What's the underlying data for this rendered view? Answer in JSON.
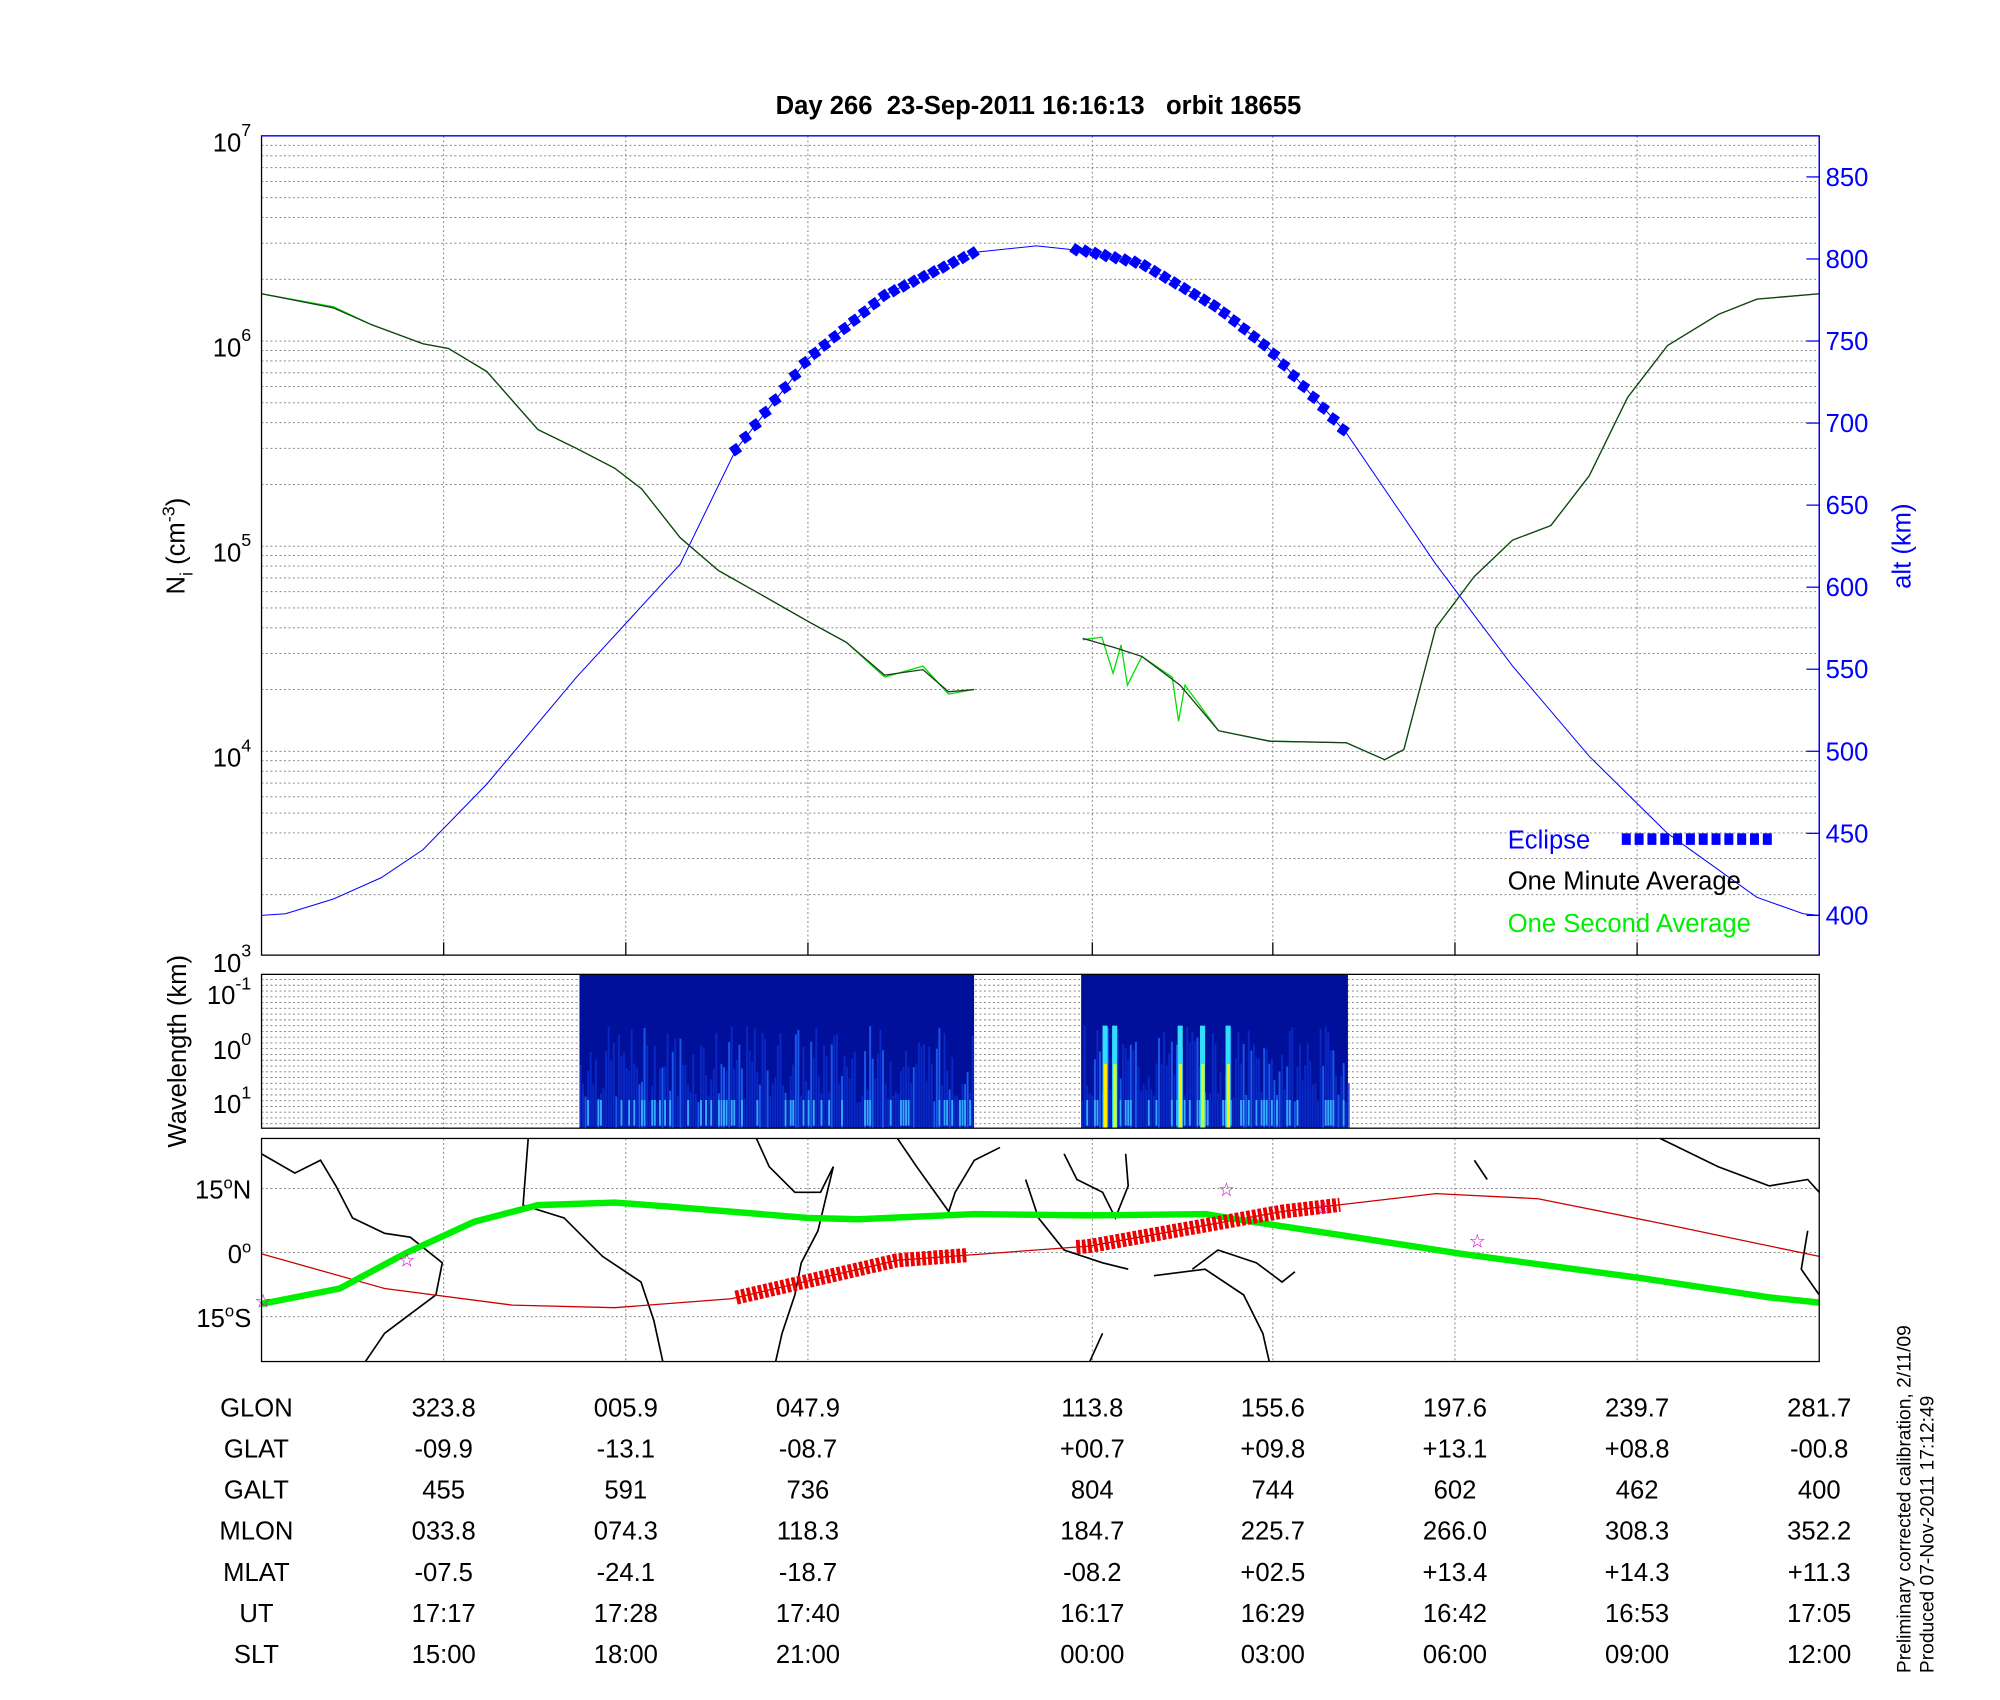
{
  "chart_data": [
    {
      "type": "line",
      "title": "Day 266  23-Sep-2011 16:16:13   orbit 18655",
      "xlabel": "",
      "x_units": "orbit minutes from plot start",
      "xlim": [
        0,
        97.5
      ],
      "x_ticks": [
        11.4,
        22.8,
        34.2,
        52.0,
        63.3,
        74.7,
        86.1,
        97.5
      ],
      "ylabel": {
        "main": "N",
        "sub": "i",
        "unit_open": " (cm",
        "unit_exp": "-3",
        "unit_close": ")"
      },
      "ylim": [
        1000,
        10000000
      ],
      "yscale": "log",
      "y_ticks": [
        {
          "base": "10",
          "exp": "7",
          "value": 10000000
        },
        {
          "base": "10",
          "exp": "6",
          "value": 1000000
        },
        {
          "base": "10",
          "exp": "5",
          "value": 100000
        },
        {
          "base": "10",
          "exp": "4",
          "value": 10000
        },
        {
          "base": "10",
          "exp": "3",
          "value": 1000
        }
      ],
      "y2label": "alt (km)",
      "y2lim": [
        375.8,
        875
      ],
      "y2_ticks": [
        850,
        800,
        750,
        700,
        650,
        600,
        550,
        500,
        450,
        400
      ],
      "grid": true,
      "legend_position": "bottom-right",
      "legend": [
        {
          "label": "Eclipse",
          "color": "#0000ff"
        },
        {
          "label": "One Minute Average",
          "color": "#000000"
        },
        {
          "label": "One Second Average",
          "color": "#00ee00"
        }
      ],
      "series": [
        {
          "name": "One Minute Average",
          "color": "#1a3d1a",
          "segments": [
            [
              [
                0,
                1700000.0
              ],
              [
                4.5,
                1450000.0
              ],
              [
                6.9,
                1200000.0
              ],
              [
                10.1,
                970000.0
              ],
              [
                11.7,
                920000.0
              ],
              [
                14.1,
                710000.0
              ],
              [
                17.3,
                370000.0
              ],
              [
                19.7,
                300000.0
              ],
              [
                22.1,
                240000.0
              ],
              [
                23.8,
                190000.0
              ],
              [
                26.2,
                110000.0
              ],
              [
                28.6,
                76000.0
              ],
              [
                31.8,
                55000.0
              ],
              [
                34.2,
                43000.0
              ],
              [
                36.6,
                34000.0
              ],
              [
                39.0,
                23500.0
              ],
              [
                41.4,
                25000.0
              ],
              [
                43.0,
                19500.0
              ],
              [
                44.6,
                20000.0
              ]
            ],
            [
              [
                51.4,
                35500.0
              ],
              [
                53.4,
                32000.0
              ],
              [
                55.1,
                29000.0
              ],
              [
                57.5,
                21000.0
              ],
              [
                59.9,
                12600.0
              ],
              [
                63.1,
                11200.0
              ],
              [
                67.9,
                11000.0
              ],
              [
                70.3,
                9100.0
              ],
              [
                71.5,
                10200.0
              ],
              [
                73.5,
                40000.0
              ],
              [
                75.9,
                71000.0
              ],
              [
                78.3,
                107000.0
              ],
              [
                80.7,
                126000.0
              ],
              [
                83.1,
                220000.0
              ],
              [
                85.5,
                530000.0
              ],
              [
                88.0,
                950000.0
              ],
              [
                91.2,
                1350000.0
              ],
              [
                93.6,
                1600000.0
              ],
              [
                97.5,
                1700000.0
              ]
            ]
          ]
        },
        {
          "name": "One Second Average",
          "color": "#00dd00",
          "segments": [
            [
              [
                0,
                1700000.0
              ],
              [
                4.5,
                1470000.0
              ],
              [
                6.9,
                1200000.0
              ],
              [
                10.1,
                970000.0
              ],
              [
                11.7,
                920000.0
              ],
              [
                14.1,
                710000.0
              ],
              [
                17.3,
                370000.0
              ],
              [
                19.7,
                300000.0
              ],
              [
                22.1,
                240000.0
              ],
              [
                23.8,
                190000.0
              ],
              [
                26.2,
                110000.0
              ],
              [
                28.6,
                76000.0
              ],
              [
                31.8,
                55000.0
              ],
              [
                34.2,
                43000.0
              ],
              [
                36.6,
                34000.0
              ],
              [
                39.0,
                23000.0
              ],
              [
                41.4,
                26000.0
              ],
              [
                43.0,
                19000.0
              ],
              [
                44.6,
                20000.0
              ]
            ],
            [
              [
                51.4,
                35000.0
              ],
              [
                52.6,
                36000.0
              ],
              [
                53.3,
                24000.0
              ],
              [
                53.8,
                33000.0
              ],
              [
                54.2,
                21000.0
              ],
              [
                55.1,
                29000.0
              ],
              [
                57.0,
                23000.0
              ],
              [
                57.4,
                14000.0
              ],
              [
                57.8,
                21000.0
              ],
              [
                59.9,
                12600.0
              ],
              [
                63.1,
                11200.0
              ],
              [
                67.9,
                11000.0
              ],
              [
                70.3,
                9100.0
              ],
              [
                71.5,
                10200.0
              ],
              [
                73.5,
                40000.0
              ],
              [
                75.9,
                71000.0
              ],
              [
                78.3,
                107000.0
              ],
              [
                80.7,
                126000.0
              ],
              [
                83.1,
                220000.0
              ],
              [
                85.5,
                530000.0
              ],
              [
                88.0,
                950000.0
              ],
              [
                91.2,
                1350000.0
              ],
              [
                93.6,
                1600000.0
              ],
              [
                97.5,
                1700000.0
              ]
            ]
          ]
        },
        {
          "name": "Altitude",
          "axis": "right",
          "color": "#0000ff",
          "points": [
            [
              0,
              400
            ],
            [
              1.5,
              401
            ],
            [
              4.5,
              410
            ],
            [
              7.5,
              423
            ],
            [
              10.1,
              440
            ],
            [
              14.1,
              480
            ],
            [
              19.7,
              545
            ],
            [
              26.2,
              614
            ],
            [
              29.7,
              684
            ],
            [
              34.2,
              739
            ],
            [
              39.0,
              778
            ],
            [
              44.6,
              804
            ],
            [
              48.5,
              808
            ],
            [
              51.4,
              805
            ],
            [
              55.1,
              797
            ],
            [
              59.9,
              770
            ],
            [
              63.1,
              745
            ],
            [
              67.9,
              694
            ],
            [
              73.5,
              614
            ],
            [
              78.3,
              552
            ],
            [
              83.1,
              497
            ],
            [
              88.0,
              450
            ],
            [
              93.6,
              411
            ],
            [
              96.5,
              401
            ],
            [
              97.5,
              400
            ]
          ]
        }
      ],
      "eclipse_ranges": [
        [
          29.7,
          44.6
        ],
        [
          51.0,
          67.9
        ]
      ]
    },
    {
      "type": "heatmap",
      "ylabel": "Wavelength (km)",
      "y_ticks": [
        {
          "base": "10",
          "exp": "-1"
        },
        {
          "base": "10",
          "exp": "0"
        },
        {
          "base": "10",
          "exp": "1"
        }
      ],
      "data_ranges": [
        [
          19.9,
          44.6
        ],
        [
          51.3,
          68.0
        ]
      ],
      "intense_columns": [
        52.8,
        53.4,
        57.5,
        58.9,
        60.5
      ]
    },
    {
      "type": "line",
      "subtype": "map",
      "y_ticks": [
        {
          "deg": "15",
          "suffix": "N",
          "value": 15
        },
        {
          "deg": "0",
          "suffix": "",
          "value": 0
        },
        {
          "deg": "15",
          "suffix": "S",
          "value": -15
        }
      ],
      "ylim": [
        -25.5,
        26.7
      ],
      "track": {
        "name": "Satellite ground track",
        "color": "#00ee00",
        "points": [
          [
            0,
            -12
          ],
          [
            4.9,
            -8.4
          ],
          [
            9.1,
            0
          ],
          [
            13.3,
            7.2
          ],
          [
            17.3,
            11.1
          ],
          [
            22.1,
            11.7
          ],
          [
            25.4,
            10.8
          ],
          [
            34.2,
            8.1
          ],
          [
            37.4,
            7.8
          ],
          [
            44.6,
            9.0
          ],
          [
            51.8,
            8.7
          ],
          [
            59.1,
            9.0
          ],
          [
            61.5,
            7.5
          ],
          [
            67.9,
            3.9
          ],
          [
            75.1,
            -0.3
          ],
          [
            86.4,
            -6.0
          ],
          [
            94.4,
            -10.5
          ],
          [
            97.5,
            -11.7
          ]
        ]
      },
      "magnetic_equator": {
        "color": "#cc0000",
        "points": [
          [
            0,
            -0.3
          ],
          [
            7.7,
            -8.4
          ],
          [
            15.7,
            -12.3
          ],
          [
            22.1,
            -12.9
          ],
          [
            29.4,
            -10.8
          ],
          [
            39.8,
            -1.8
          ],
          [
            51.8,
            1.5
          ],
          [
            63.9,
            9.6
          ],
          [
            73.5,
            13.8
          ],
          [
            79.9,
            12.6
          ],
          [
            87.9,
            6.6
          ],
          [
            97.5,
            -0.9
          ]
        ]
      },
      "stars": [
        [
          0.1,
          -11.4
        ],
        [
          9.1,
          -1.8
        ],
        [
          60.4,
          14.7
        ],
        [
          66.5,
          10.5
        ],
        [
          76.1,
          2.7
        ]
      ]
    }
  ],
  "table": {
    "rows": [
      {
        "label": "GLON",
        "values": [
          "323.8",
          "005.9",
          "047.9",
          "113.8",
          "155.6",
          "197.6",
          "239.7",
          "281.7"
        ]
      },
      {
        "label": "GLAT",
        "values": [
          "-09.9",
          "-13.1",
          "-08.7",
          "+00.7",
          "+09.8",
          "+13.1",
          "+08.8",
          "-00.8"
        ]
      },
      {
        "label": "GALT",
        "values": [
          "455",
          "591",
          "736",
          "804",
          "744",
          "602",
          "462",
          "400"
        ]
      },
      {
        "label": "MLON",
        "values": [
          "033.8",
          "074.3",
          "118.3",
          "184.7",
          "225.7",
          "266.0",
          "308.3",
          "352.2"
        ]
      },
      {
        "label": "MLAT",
        "values": [
          "-07.5",
          "-24.1",
          "-18.7",
          "-08.2",
          "+02.5",
          "+13.4",
          "+14.3",
          "+11.3"
        ]
      },
      {
        "label": "UT",
        "values": [
          "17:17",
          "17:28",
          "17:40",
          "16:17",
          "16:29",
          "16:42",
          "16:53",
          "17:05"
        ]
      },
      {
        "label": "SLT",
        "values": [
          "15:00",
          "18:00",
          "21:00",
          "00:00",
          "03:00",
          "06:00",
          "09:00",
          "12:00"
        ]
      }
    ]
  },
  "footer": {
    "line1": "Preliminary corrected calibration, 2/11/09",
    "line2": "Produced 07-Nov-2011 17:12:49"
  }
}
